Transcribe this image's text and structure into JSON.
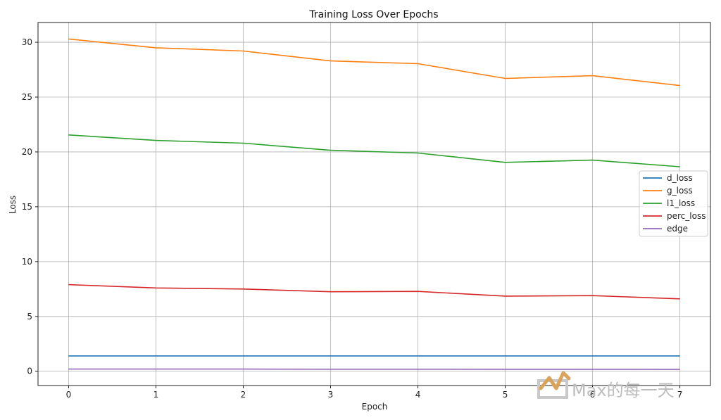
{
  "chart_data": {
    "type": "line",
    "title": "Training Loss Over Epochs",
    "xlabel": "Epoch",
    "ylabel": "Loss",
    "x": [
      0,
      1,
      2,
      3,
      4,
      5,
      6,
      7
    ],
    "xticks": [
      "0",
      "1",
      "2",
      "3",
      "4",
      "5",
      "6",
      "7"
    ],
    "yticks": [
      "0",
      "5",
      "10",
      "15",
      "20",
      "25",
      "30"
    ],
    "xlim": [
      -0.35,
      7.35
    ],
    "ylim": [
      -1.3,
      31.8
    ],
    "grid": true,
    "legend_position": "center-right",
    "series": [
      {
        "name": "d_loss",
        "color": "#1f77b4",
        "values": [
          1.4,
          1.4,
          1.4,
          1.4,
          1.4,
          1.4,
          1.4,
          1.4
        ]
      },
      {
        "name": "g_loss",
        "color": "#ff7f0e",
        "values": [
          30.3,
          29.5,
          29.2,
          28.3,
          28.05,
          26.7,
          26.95,
          26.05
        ]
      },
      {
        "name": "l1_loss",
        "color": "#2ca02c",
        "values": [
          21.55,
          21.05,
          20.8,
          20.15,
          19.9,
          19.05,
          19.25,
          18.65
        ]
      },
      {
        "name": "perc_loss",
        "color": "#d62728",
        "values": [
          7.9,
          7.6,
          7.5,
          7.25,
          7.28,
          6.85,
          6.9,
          6.6
        ]
      },
      {
        "name": "edge",
        "color": "#9467bd",
        "values": [
          0.2,
          0.2,
          0.2,
          0.19,
          0.19,
          0.18,
          0.18,
          0.17
        ]
      }
    ]
  },
  "watermark": {
    "text": "Max的每一天",
    "logo_color": "#d9a35a"
  }
}
